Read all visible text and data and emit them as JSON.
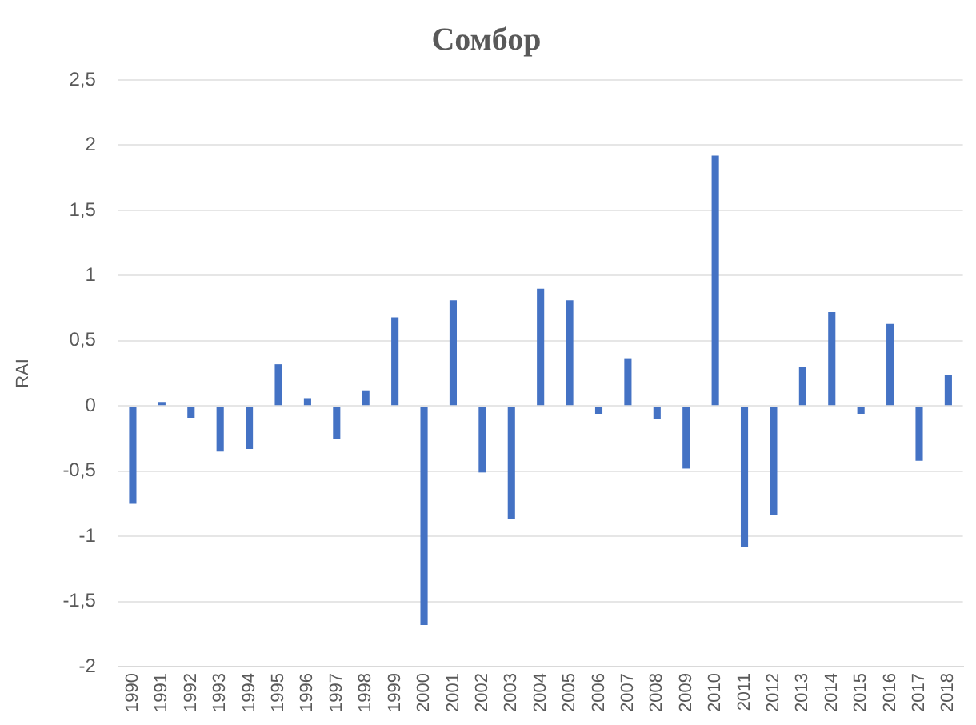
{
  "chart_data": {
    "type": "bar",
    "title": "Сомбор",
    "ylabel": "RAI",
    "categories": [
      "1990",
      "1991",
      "1992",
      "1993",
      "1994",
      "1995",
      "1996",
      "1997",
      "1998",
      "1999",
      "2000",
      "2001",
      "2002",
      "2003",
      "2004",
      "2005",
      "2006",
      "2007",
      "2008",
      "2009",
      "2010",
      "2011",
      "2012",
      "2013",
      "2014",
      "2015",
      "2016",
      "2017",
      "2018"
    ],
    "values": [
      -0.75,
      0.03,
      -0.09,
      -0.35,
      -0.33,
      0.32,
      0.06,
      -0.25,
      0.12,
      0.68,
      -1.68,
      0.81,
      -0.51,
      -0.87,
      0.9,
      0.81,
      -0.06,
      0.36,
      -0.1,
      -0.48,
      1.92,
      -1.08,
      -0.84,
      0.3,
      0.72,
      -0.06,
      0.63,
      -0.42,
      0.24
    ],
    "color": "#4472c4",
    "ylim": [
      -2,
      2.5
    ],
    "yticks": [
      {
        "value": -2,
        "label": "-2"
      },
      {
        "value": -1.5,
        "label": "-1,5"
      },
      {
        "value": -1,
        "label": "-1"
      },
      {
        "value": -0.5,
        "label": "-0,5"
      },
      {
        "value": 0,
        "label": "0"
      },
      {
        "value": 0.5,
        "label": "0,5"
      },
      {
        "value": 1,
        "label": "1"
      },
      {
        "value": 1.5,
        "label": "1,5"
      },
      {
        "value": 2,
        "label": "2"
      },
      {
        "value": 2.5,
        "label": "2,5"
      }
    ],
    "grid": "y",
    "legend": false
  }
}
